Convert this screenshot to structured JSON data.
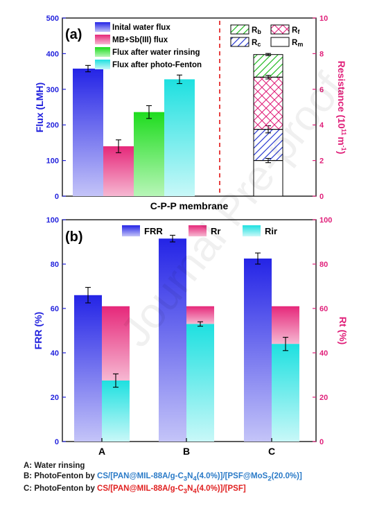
{
  "chart_data": [
    {
      "type": "bar",
      "panel_label": "(a)",
      "title": "",
      "xlabel": "C-P-P membrane",
      "ylabel": "Flux (LMH)",
      "ylim": [
        0,
        500
      ],
      "yticks": [
        "0",
        "100",
        "200",
        "300",
        "400",
        "500"
      ],
      "categories": [
        "Inital water flux",
        "MB+Sb(III) flux",
        "Flux after water rinsing",
        "Flux after photo-Fenton"
      ],
      "values": [
        358,
        140,
        236,
        328
      ],
      "errors": [
        9,
        18,
        18,
        12
      ],
      "colors": [
        "#3030e8",
        "#e8307a",
        "#22dd22",
        "#22e0e0"
      ],
      "legend": [
        "Inital water flux",
        "MB+Sb(III) flux",
        "Flux after water rinsing",
        "Flux after photo-Fenton"
      ],
      "legend_position": "top-left",
      "right_axis": {
        "ylabel_main": "Resistance (10",
        "ylabel_sup": "11",
        "ylabel_mid": "m",
        "ylabel_sup2": "-1",
        "ylabel_end": ")",
        "ylim": [
          0,
          10
        ],
        "yticks": [
          "0",
          "2",
          "4",
          "6",
          "8",
          "10"
        ]
      },
      "stack": {
        "segments": [
          {
            "name": "Rm",
            "value": 2.0,
            "cumulative": 2.0,
            "error": 0.12,
            "pattern": "none",
            "color": "#000000"
          },
          {
            "name": "Rc",
            "value": 1.75,
            "cumulative": 3.75,
            "error": 0.2,
            "pattern": "diag-blue",
            "color": "#2a3ad0"
          },
          {
            "name": "Rf",
            "value": 2.93,
            "cumulative": 6.68,
            "error": 0.1,
            "pattern": "cross-red",
            "color": "#e0207a"
          },
          {
            "name": "Rb",
            "value": 1.27,
            "cumulative": 7.95,
            "error": 0.06,
            "pattern": "diag-green",
            "color": "#22bb22"
          }
        ],
        "legend": [
          "Rb",
          "Rf",
          "Rc",
          "Rm"
        ]
      }
    },
    {
      "type": "bar",
      "panel_label": "(b)",
      "title": "",
      "xlabel": "",
      "ylabel": "FRR (%)",
      "ylim": [
        0,
        100
      ],
      "yticks": [
        "0",
        "20",
        "40",
        "60",
        "80",
        "100"
      ],
      "categories": [
        "A",
        "B",
        "C"
      ],
      "series": [
        {
          "name": "FRR",
          "values": [
            66,
            91.5,
            82.5
          ],
          "errors": [
            3.5,
            1.5,
            2.5
          ],
          "color": "#3030e8"
        },
        {
          "name": "Rr",
          "values": [
            33.5,
            8,
            17
          ],
          "color": "#e8307a"
        },
        {
          "name": "Rir",
          "values": [
            27.5,
            53,
            44
          ],
          "errors": [
            3,
            1,
            3
          ],
          "color": "#22e0e0"
        }
      ],
      "rt_values": [
        61,
        61,
        61
      ],
      "legend": [
        "FRR",
        "Rr",
        "Rir"
      ],
      "legend_position": "top",
      "right_axis": {
        "ylabel": "Rt (%)",
        "ylim": [
          0,
          100
        ],
        "yticks": [
          "0",
          "20",
          "40",
          "60",
          "80",
          "100"
        ]
      }
    }
  ],
  "captions": {
    "a": "A: Water rinsing",
    "b_prefix": "B: PhotoFenton by ",
    "b_p1": "CS/[PAN@MIL-88A/g-C",
    "b_s1": "3",
    "b_p2": "N",
    "b_s2": "4",
    "b_p3": "(4.0%)]/[PSF@MoS",
    "b_s3": "2",
    "b_p4": "(20.0%)]",
    "c_prefix": "C: PhotoFenton by ",
    "c_p1": "CS/[PAN@MIL-88A/g-C",
    "c_s1": "3",
    "c_p2": "N",
    "c_s2": "4",
    "c_p3": "(4.0%)]/[PSF]"
  },
  "watermark": "Journal Pre-proof"
}
